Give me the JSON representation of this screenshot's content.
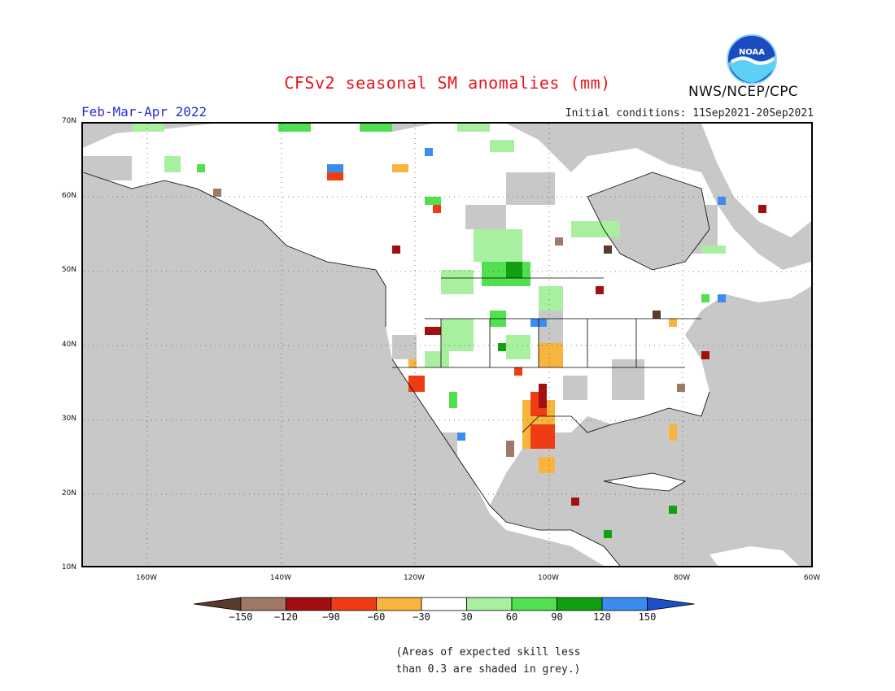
{
  "title": "CFSv2 seasonal SM anomalies (mm)",
  "period": "Feb-Mar-Apr 2022",
  "initial_conditions": "Initial conditions: 11Sep2021-20Sep2021",
  "agency": "NWS/NCEP/CPC",
  "logo_text": "NOAA",
  "map": {
    "lat_labels": [
      "70N",
      "60N",
      "50N",
      "40N",
      "30N",
      "20N",
      "10N"
    ],
    "lon_labels": [
      "160W",
      "140W",
      "120W",
      "100W",
      "80W",
      "60W"
    ],
    "background_skill_grey": "#c8c8c8"
  },
  "colorbar": {
    "labels": [
      "-150",
      "-120",
      "-90",
      "-60",
      "-30",
      "30",
      "60",
      "90",
      "120",
      "150"
    ],
    "colors": [
      "#5a3a2a",
      "#a07868",
      "#a01010",
      "#f03c14",
      "#f8b43c",
      "#ffffff",
      "#a8f0a0",
      "#50e050",
      "#10a010",
      "#3c8cf0",
      "#1c50c8"
    ]
  },
  "note_line1": "(Areas of expected skill less",
  "note_line2": "than 0.3 are shaded in grey.)"
}
